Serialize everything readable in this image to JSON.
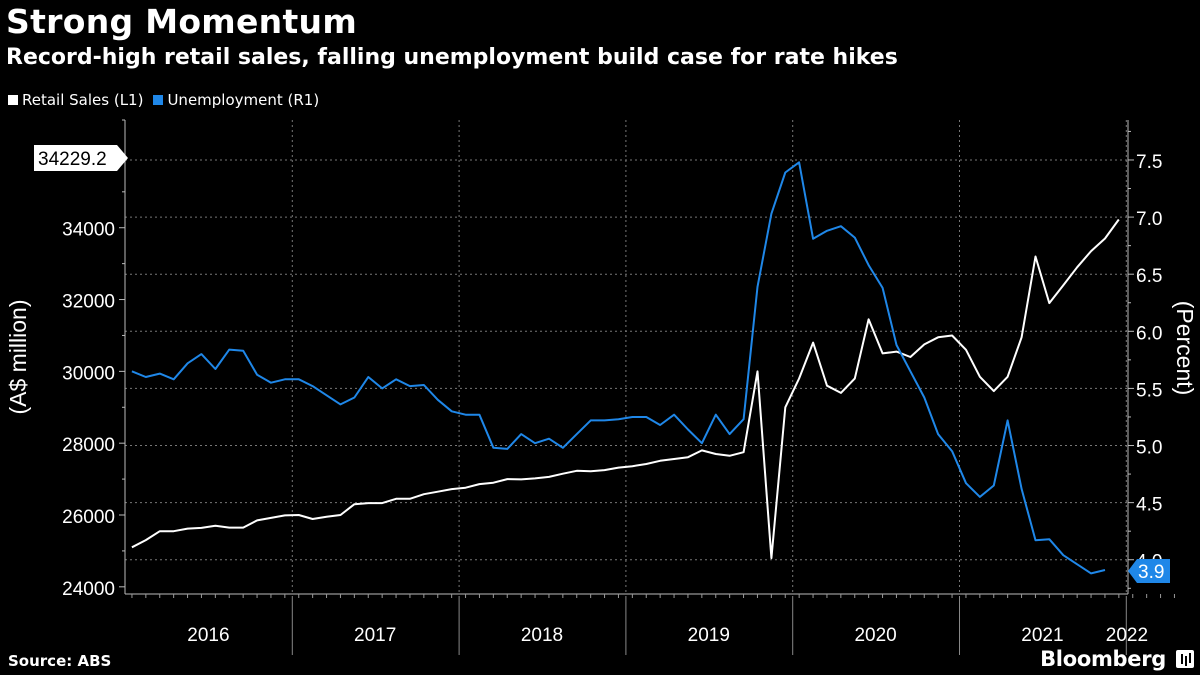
{
  "header": {
    "title": "Strong Momentum",
    "subtitle": "Record-high retail sales, falling unemployment build case for rate hikes"
  },
  "legend": [
    {
      "label": "Retail Sales (L1)",
      "color": "#ffffff"
    },
    {
      "label": "Unemployment (R1)",
      "color": "#1f87e8"
    }
  ],
  "footer": {
    "source": "Source: ABS",
    "brand": "Bloomberg"
  },
  "chart_data": {
    "type": "line",
    "x_start": "2016-01",
    "x_end": "2022-03",
    "year_labels": [
      "2016",
      "2017",
      "2018",
      "2019",
      "2020",
      "2021",
      "2022"
    ],
    "left_axis": {
      "label": "(A$ million)",
      "range": [
        23800,
        37000
      ],
      "ticks": [
        24000,
        26000,
        28000,
        30000,
        32000,
        34000
      ],
      "tick_labels": [
        "24000",
        "26000",
        "28000",
        "30000",
        "32000",
        "34000"
      ]
    },
    "right_axis": {
      "label": "(Percent)",
      "range": [
        3.7,
        7.85
      ],
      "ticks": [
        4.0,
        4.5,
        5.0,
        5.5,
        6.0,
        6.5,
        7.0,
        7.5
      ],
      "tick_labels": [
        "4.0",
        "4.5",
        "5.0",
        "5.5",
        "6.0",
        "6.5",
        "7.0",
        "7.5"
      ]
    },
    "series": [
      {
        "name": "Retail Sales (L1)",
        "axis": "left",
        "color": "#ffffff",
        "last_label": "34229.2",
        "values": [
          25100,
          25300,
          25550,
          25550,
          25620,
          25640,
          25700,
          25650,
          25650,
          25850,
          25920,
          25990,
          26000,
          25890,
          25950,
          26000,
          26300,
          26330,
          26330,
          26450,
          26450,
          26580,
          26650,
          26720,
          26760,
          26860,
          26900,
          27000,
          26990,
          27020,
          27060,
          27150,
          27230,
          27220,
          27250,
          27320,
          27360,
          27420,
          27510,
          27560,
          27610,
          27800,
          27700,
          27650,
          27750,
          30000,
          24800,
          29000,
          29800,
          30800,
          29600,
          29400,
          29800,
          31450,
          30500,
          30550,
          30400,
          30750,
          30950,
          31000,
          30600,
          29850,
          29450,
          29850,
          30950,
          33200,
          31900,
          32400,
          32900,
          33350,
          33700,
          34229.2
        ]
      },
      {
        "name": "Unemployment (R1)",
        "axis": "right",
        "color": "#1f87e8",
        "last_label": "3.9",
        "values": [
          5.65,
          5.6,
          5.63,
          5.58,
          5.72,
          5.8,
          5.67,
          5.84,
          5.83,
          5.62,
          5.55,
          5.58,
          5.58,
          5.52,
          5.44,
          5.36,
          5.42,
          5.6,
          5.5,
          5.58,
          5.52,
          5.53,
          5.4,
          5.3,
          5.27,
          5.27,
          4.98,
          4.97,
          5.1,
          5.02,
          5.06,
          4.98,
          5.1,
          5.22,
          5.22,
          5.23,
          5.25,
          5.25,
          5.18,
          5.27,
          5.14,
          5.02,
          5.27,
          5.1,
          5.23,
          6.39,
          7.03,
          7.39,
          7.48,
          6.81,
          6.88,
          6.92,
          6.82,
          6.58,
          6.38,
          5.88,
          5.65,
          5.42,
          5.1,
          4.95,
          4.67,
          4.55,
          4.65,
          5.22,
          4.62,
          4.17,
          4.18,
          4.04,
          3.96,
          3.88,
          3.91
        ]
      }
    ]
  }
}
